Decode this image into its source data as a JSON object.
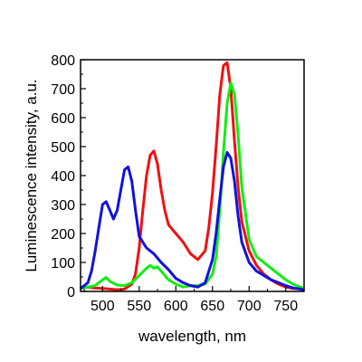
{
  "chart_data": {
    "type": "line",
    "title": "",
    "xlabel": "wavelength, nm",
    "ylabel": "Luminescence intensity, a.u.",
    "xlim": [
      470,
      775
    ],
    "ylim": [
      0,
      800
    ],
    "x_ticks": [
      500,
      550,
      600,
      650,
      700,
      750
    ],
    "y_ticks": [
      0,
      100,
      200,
      300,
      400,
      500,
      600,
      700,
      800
    ],
    "grid": false,
    "legend": "none",
    "series": [
      {
        "color": "#ee1111",
        "x": [
          470,
          480,
          490,
          500,
          510,
          520,
          530,
          540,
          545,
          550,
          555,
          560,
          565,
          570,
          575,
          580,
          585,
          590,
          600,
          610,
          620,
          630,
          640,
          645,
          650,
          655,
          660,
          665,
          670,
          675,
          680,
          685,
          690,
          700,
          710,
          720,
          730,
          740,
          750,
          760,
          770,
          775
        ],
        "y": [
          10,
          15,
          12,
          10,
          8,
          6,
          8,
          25,
          60,
          150,
          280,
          400,
          470,
          485,
          440,
          350,
          280,
          230,
          200,
          170,
          130,
          110,
          140,
          220,
          340,
          500,
          680,
          780,
          790,
          700,
          520,
          360,
          240,
          140,
          90,
          60,
          40,
          25,
          15,
          10,
          8,
          5
        ]
      },
      {
        "color": "#11ee11",
        "x": [
          470,
          480,
          490,
          500,
          505,
          510,
          520,
          530,
          540,
          550,
          560,
          565,
          570,
          575,
          580,
          590,
          600,
          610,
          620,
          630,
          640,
          650,
          655,
          660,
          665,
          670,
          675,
          680,
          685,
          690,
          700,
          710,
          720,
          730,
          740,
          750,
          760,
          770,
          775
        ],
        "y": [
          10,
          15,
          20,
          40,
          48,
          35,
          22,
          20,
          30,
          55,
          80,
          90,
          80,
          85,
          70,
          40,
          25,
          15,
          20,
          20,
          25,
          60,
          120,
          280,
          480,
          650,
          720,
          680,
          540,
          360,
          180,
          120,
          100,
          80,
          60,
          40,
          25,
          15,
          10
        ]
      },
      {
        "color": "#1111dd",
        "x": [
          470,
          480,
          485,
          490,
          495,
          500,
          505,
          510,
          515,
          520,
          525,
          530,
          535,
          540,
          545,
          550,
          560,
          570,
          580,
          590,
          600,
          610,
          620,
          630,
          640,
          650,
          655,
          660,
          665,
          670,
          675,
          680,
          685,
          690,
          700,
          710,
          720,
          730,
          740,
          750,
          760,
          770,
          775
        ],
        "y": [
          10,
          30,
          70,
          140,
          220,
          300,
          310,
          280,
          250,
          280,
          350,
          420,
          430,
          380,
          280,
          190,
          150,
          130,
          100,
          75,
          45,
          30,
          20,
          15,
          30,
          110,
          200,
          320,
          430,
          480,
          460,
          380,
          260,
          170,
          100,
          70,
          55,
          40,
          30,
          20,
          12,
          8,
          5
        ]
      }
    ]
  }
}
